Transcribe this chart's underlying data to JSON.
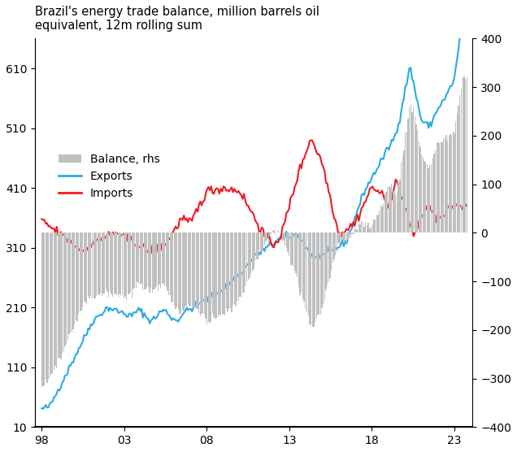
{
  "title": "Brazil's energy trade balance, million barrels oil\nequivalent, 12m rolling sum",
  "legend_items": [
    "Balance, rhs",
    "Exports",
    "Imports"
  ],
  "export_color": "#29ABE2",
  "import_color": "#ED1C24",
  "balance_color": "#C0C0C0",
  "ylim_left": [
    10,
    660
  ],
  "ylim_right": [
    -400,
    400
  ],
  "yticks_left": [
    10,
    110,
    210,
    310,
    410,
    510,
    610
  ],
  "yticks_right": [
    -400,
    -300,
    -200,
    -100,
    0,
    100,
    200,
    300,
    400
  ],
  "xtick_years": [
    1998,
    2003,
    2008,
    2013,
    2018,
    2023
  ],
  "xtick_labels": [
    "98",
    "03",
    "08",
    "13",
    "18",
    "23"
  ],
  "start_year": 1998.0,
  "end_year": 2023.75,
  "n_points": 312
}
